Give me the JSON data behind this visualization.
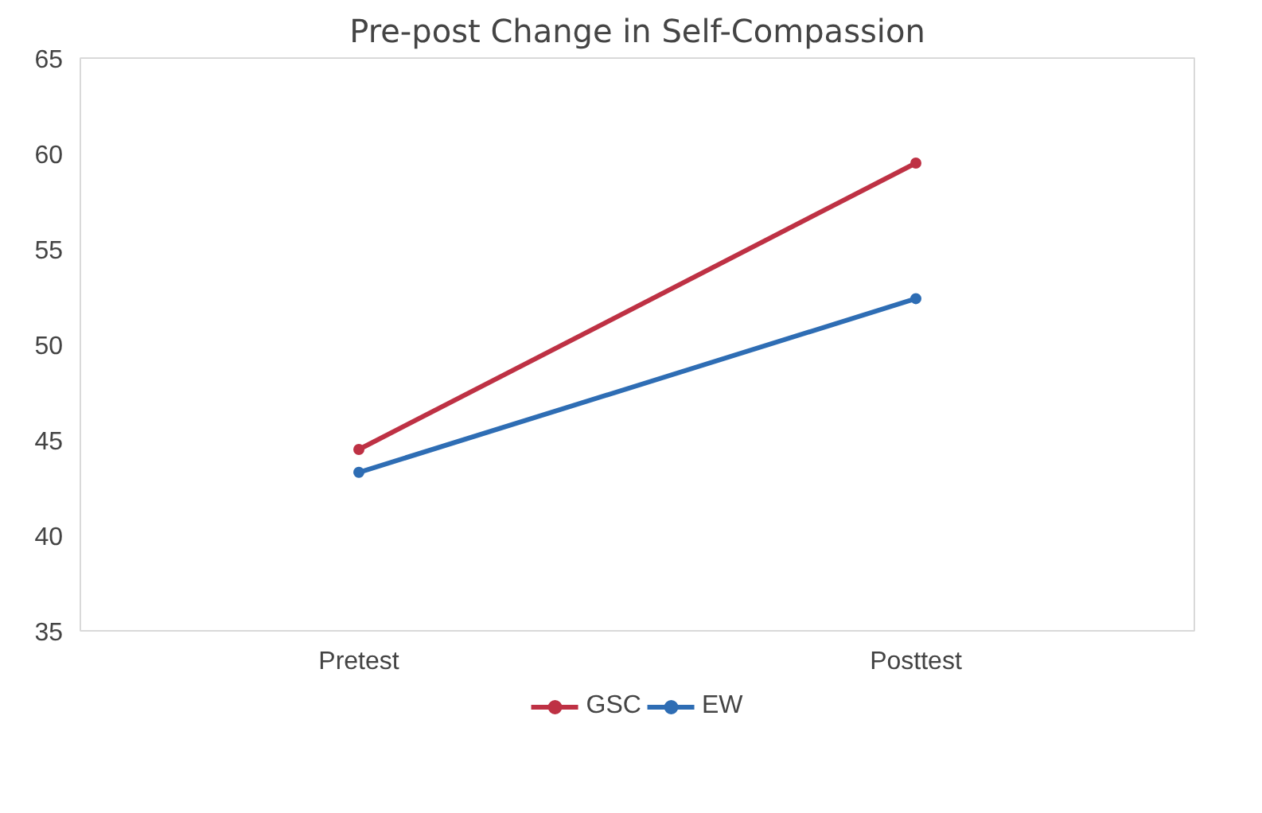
{
  "chart_data": {
    "type": "line",
    "title": "Pre-post Change in Self-Compassion",
    "categories": [
      "Pretest",
      "Posttest"
    ],
    "series": [
      {
        "name": "GSC",
        "color": "#be3144",
        "values": [
          44.5,
          59.5
        ]
      },
      {
        "name": "EW",
        "color": "#2e6db4",
        "values": [
          43.3,
          52.4
        ]
      }
    ],
    "ylim": [
      35,
      65
    ],
    "yticks": [
      35,
      40,
      45,
      50,
      55,
      60,
      65
    ],
    "grid": false,
    "legend": "bottom",
    "marker": "circle",
    "line_style": "solid"
  }
}
